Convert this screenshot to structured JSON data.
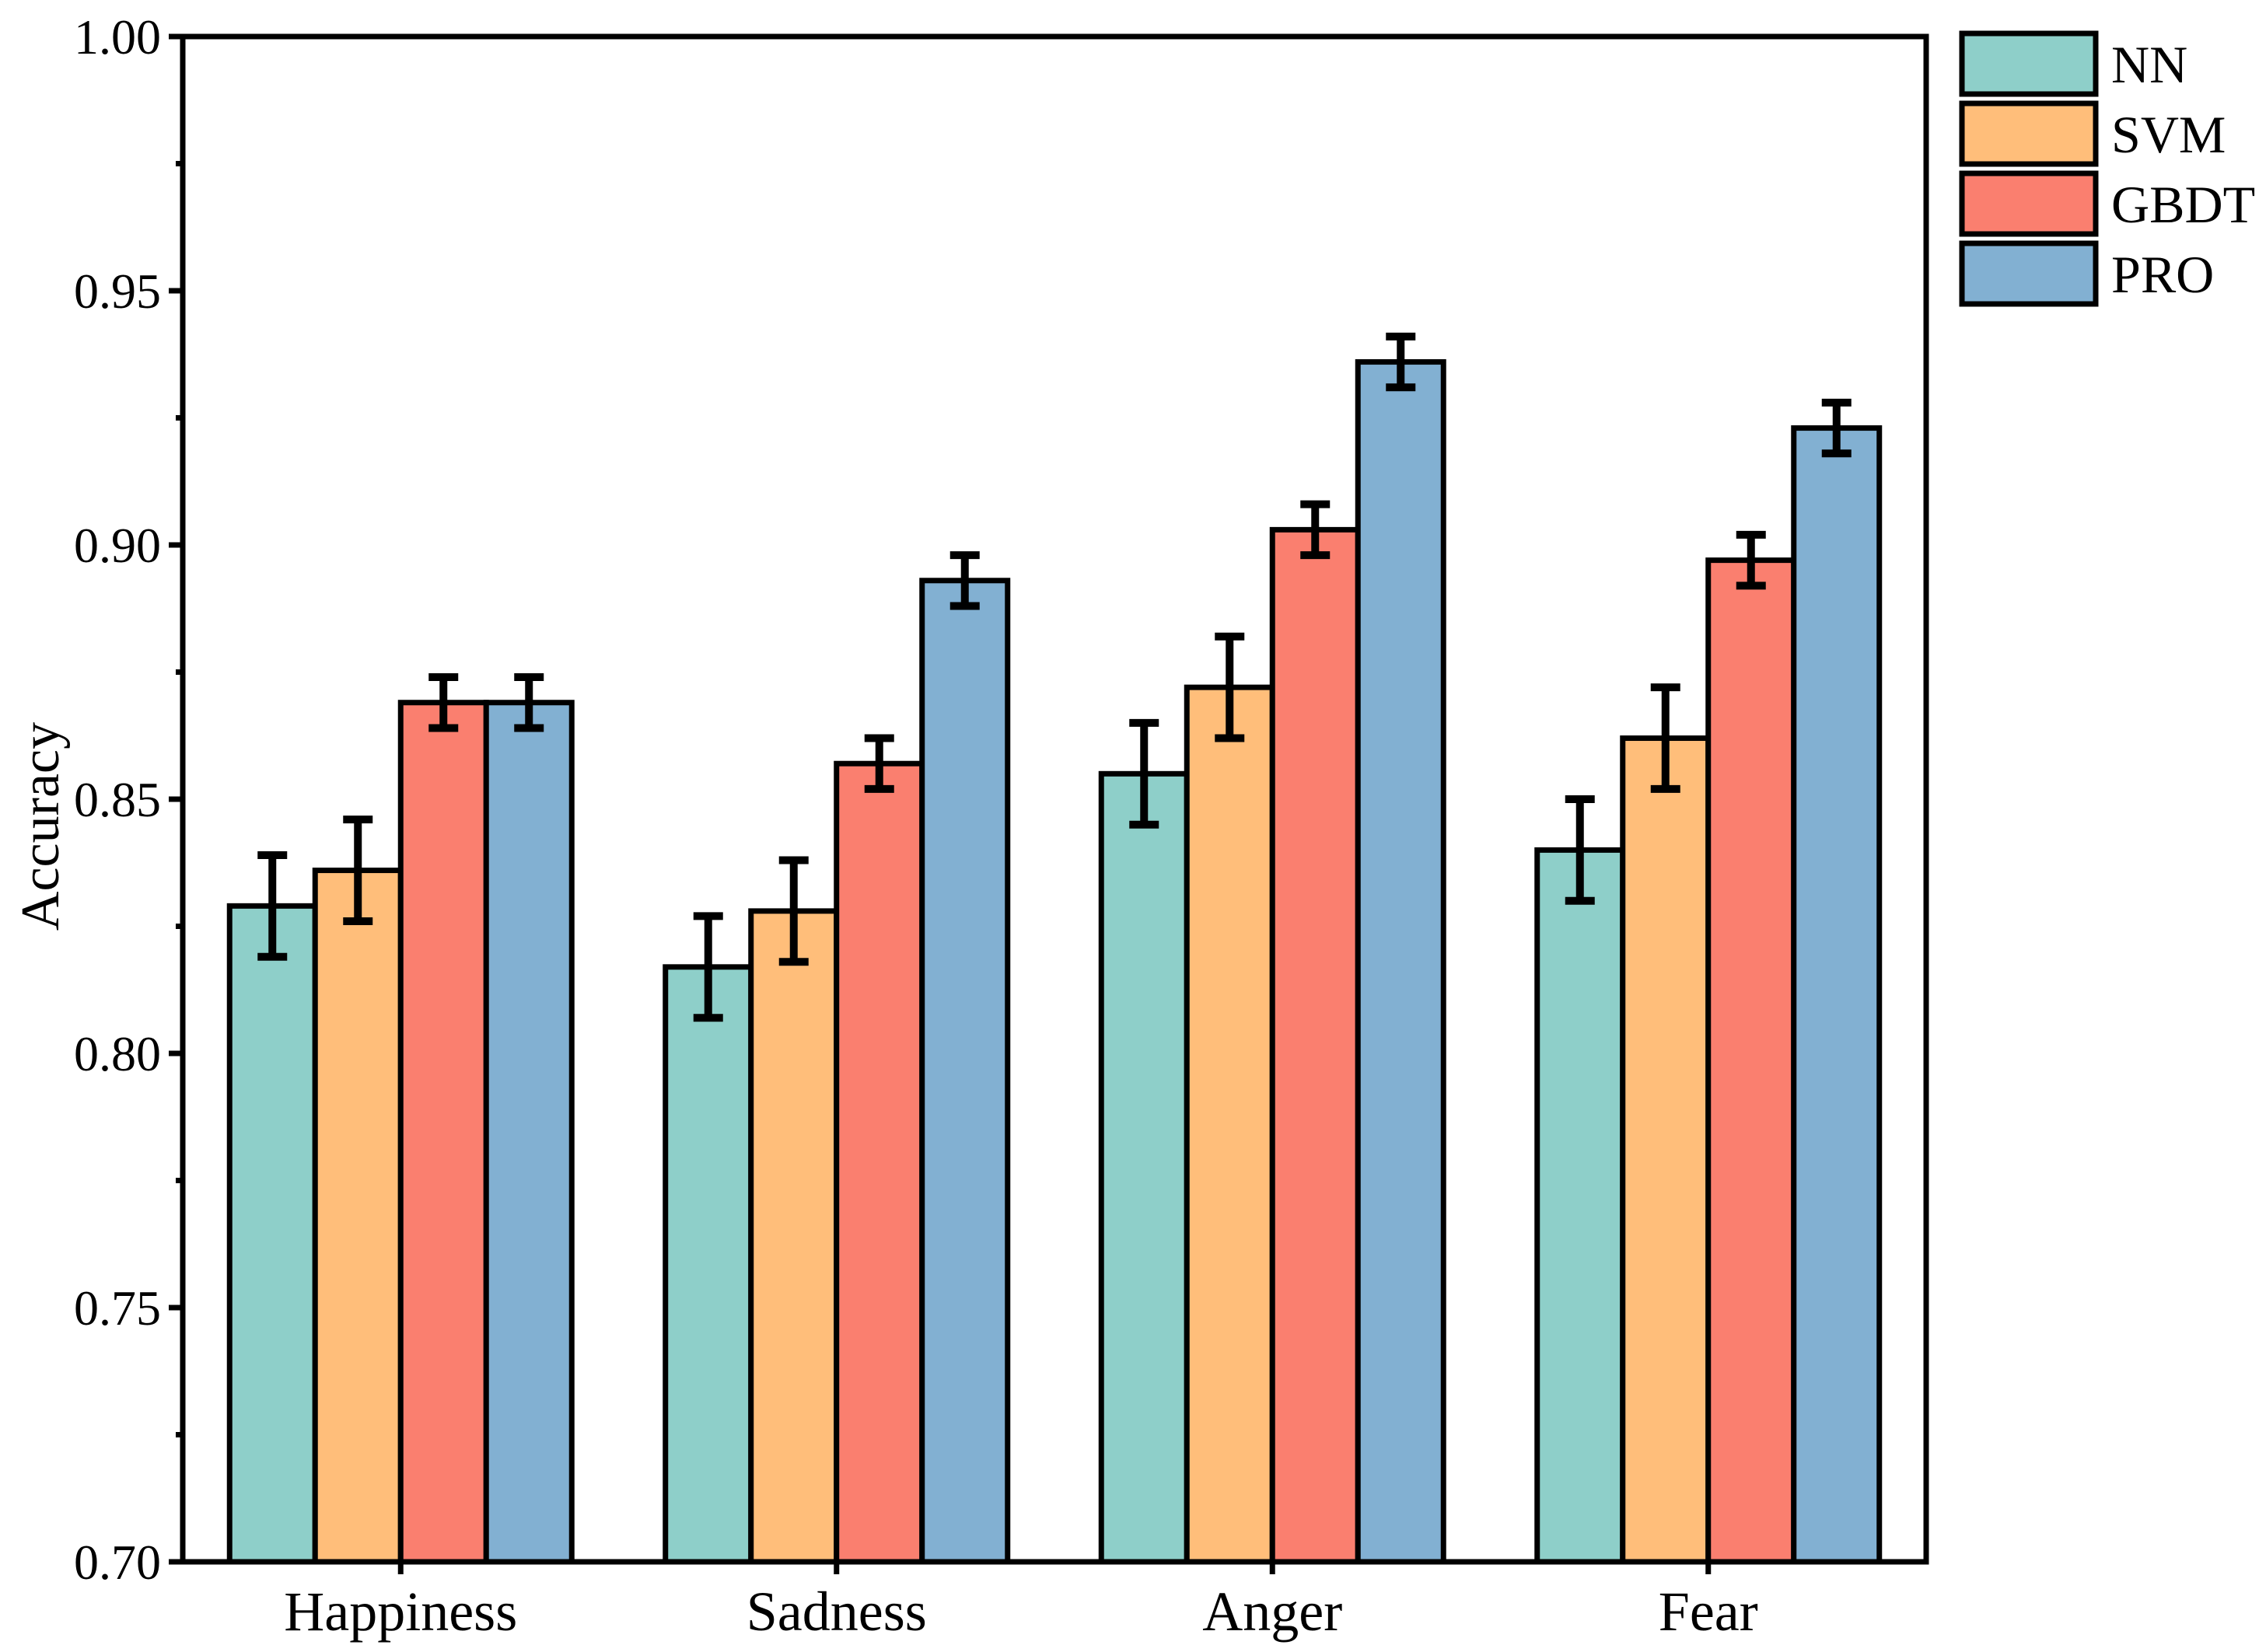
{
  "chart_data": {
    "type": "bar",
    "title": "",
    "xlabel": "",
    "ylabel": "Accuracy",
    "categories": [
      "Happiness",
      "Sadness",
      "Anger",
      "Fear"
    ],
    "series": [
      {
        "name": "NN",
        "color": "#8ECFC9",
        "values": [
          0.829,
          0.817,
          0.855,
          0.84
        ],
        "errors": [
          0.01,
          0.01,
          0.01,
          0.01
        ]
      },
      {
        "name": "SVM",
        "color": "#FFBE7A",
        "values": [
          0.836,
          0.828,
          0.872,
          0.862
        ],
        "errors": [
          0.01,
          0.01,
          0.01,
          0.01
        ]
      },
      {
        "name": "GBDT",
        "color": "#FA7F6F",
        "values": [
          0.869,
          0.857,
          0.903,
          0.897
        ],
        "errors": [
          0.005,
          0.005,
          0.005,
          0.005
        ]
      },
      {
        "name": "PRO",
        "color": "#82B0D2",
        "values": [
          0.869,
          0.893,
          0.936,
          0.923
        ],
        "errors": [
          0.005,
          0.005,
          0.005,
          0.005
        ]
      }
    ],
    "ylim": [
      0.7,
      1.0
    ],
    "ytick_step": 0.05,
    "ytick_minor_step": 0.025,
    "ytick_labels": [
      "0.70",
      "0.75",
      "0.80",
      "0.85",
      "0.90",
      "0.95",
      "1.00"
    ],
    "grid": false,
    "legend_position": "top-right-outside",
    "bar_edge_color": "#000000",
    "error_bar_color": "#000000",
    "axis_color": "#000000",
    "background_color": "#ffffff"
  }
}
